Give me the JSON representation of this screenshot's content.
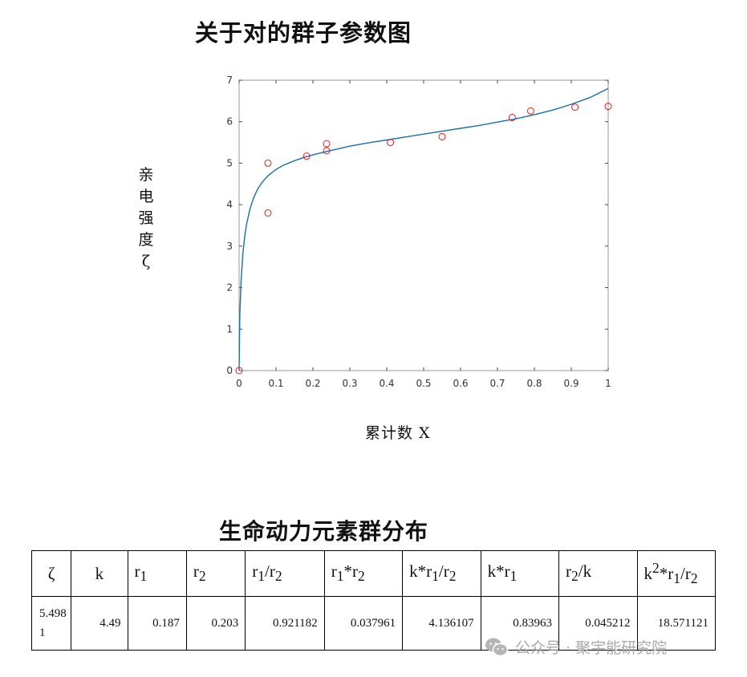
{
  "chart_title": "关于对的群子参数图",
  "chart_data": {
    "type": "scatter",
    "title": "关于对的群子参数图",
    "xlabel": "累计数 X",
    "ylabel_chars": [
      "亲",
      "电",
      "强",
      "度",
      "ζ"
    ],
    "xlim": [
      0,
      1
    ],
    "ylim": [
      0,
      7
    ],
    "xticks": [
      0,
      0.1,
      0.2,
      0.3,
      0.4,
      0.5,
      0.6,
      0.7,
      0.8,
      0.9,
      1
    ],
    "xtick_labels": [
      "0",
      "0.1",
      "0.2",
      "0.3",
      "0.4",
      "0.5",
      "0.6",
      "0.7",
      "0.8",
      "0.9",
      "1"
    ],
    "yticks": [
      0,
      1,
      2,
      3,
      4,
      5,
      6,
      7
    ],
    "ytick_labels": [
      "0",
      "1",
      "2",
      "3",
      "4",
      "5",
      "6",
      "7"
    ],
    "grid": false,
    "legend": "none",
    "series": [
      {
        "type": "scatter",
        "marker": "circle",
        "color": "#e02020",
        "x": [
          0,
          0.078,
          0.078,
          0.183,
          0.237,
          0.237,
          0.41,
          0.55,
          0.74,
          0.79,
          0.91,
          1.0
        ],
        "y": [
          0,
          5.0,
          3.8,
          5.17,
          5.3,
          5.47,
          5.5,
          5.64,
          6.1,
          6.26,
          6.35,
          6.37
        ]
      },
      {
        "type": "line",
        "color": "#1a6fa8",
        "x": [
          0,
          0.002,
          0.005,
          0.01,
          0.015,
          0.02,
          0.03,
          0.04,
          0.05,
          0.06,
          0.07,
          0.08,
          0.1,
          0.12,
          0.15,
          0.18,
          0.2,
          0.25,
          0.3,
          0.35,
          0.4,
          0.45,
          0.5,
          0.55,
          0.6,
          0.65,
          0.7,
          0.75,
          0.8,
          0.85,
          0.9,
          0.95,
          1.0
        ],
        "y": [
          0,
          1.35,
          2.1,
          2.8,
          3.22,
          3.52,
          3.92,
          4.18,
          4.37,
          4.51,
          4.62,
          4.71,
          4.85,
          4.95,
          5.06,
          5.15,
          5.2,
          5.31,
          5.41,
          5.49,
          5.56,
          5.63,
          5.7,
          5.77,
          5.84,
          5.91,
          5.99,
          6.07,
          6.17,
          6.28,
          6.42,
          6.58,
          6.8
        ]
      }
    ]
  },
  "table": {
    "title": "生命动力元素群分布",
    "headers": [
      {
        "base": "ζ",
        "sub": "",
        "suffix": ""
      },
      {
        "base": "k",
        "sub": "",
        "suffix": ""
      },
      {
        "base": "r",
        "sub": "1",
        "suffix": ""
      },
      {
        "base": "r",
        "sub": "2",
        "suffix": ""
      },
      {
        "base": "r",
        "sub": "1",
        "mid": "/r",
        "sub2": "2"
      },
      {
        "base": "r",
        "sub": "1",
        "mid": "*r",
        "sub2": "2"
      },
      {
        "base": "k*r",
        "sub": "1",
        "mid": "/r",
        "sub2": "2"
      },
      {
        "base": "k*r",
        "sub": "1",
        "suffix": ""
      },
      {
        "base": "r",
        "sub": "2",
        "mid": "/k",
        "sub2": ""
      },
      {
        "base": "k",
        "sup": "2",
        "mid": "*r",
        "sub": "1",
        "mid2": "/r",
        "sub2": "2"
      }
    ],
    "values": [
      "5.4981",
      "4.49",
      "0.187",
      "0.203",
      "0.921182",
      "0.037961",
      "4.136107",
      "0.83963",
      "0.045212",
      "18.571121"
    ]
  },
  "watermark": {
    "icon": "wechat-icon",
    "text": "公众号 · 聚宇能研究院",
    "color": "#a9a9a9"
  },
  "colors": {
    "marker": "#e02020",
    "curve": "#1a6fa8",
    "axis": "#444444"
  }
}
